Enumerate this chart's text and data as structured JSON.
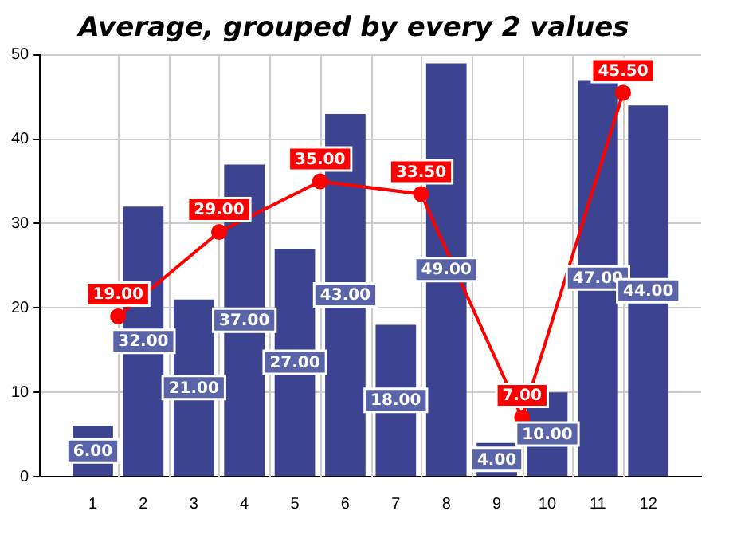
{
  "chart_data": {
    "type": "bar",
    "title": "Average, grouped by every 2 values",
    "x": [
      1,
      2,
      3,
      4,
      5,
      6,
      7,
      8,
      9,
      10,
      11,
      12
    ],
    "xlim": [
      0.5,
      12.5
    ],
    "xticks": [
      1,
      2,
      3,
      4,
      5,
      6,
      7,
      8,
      9,
      10,
      11,
      12
    ],
    "ylim": [
      0,
      50
    ],
    "yticks": [
      0,
      10,
      20,
      30,
      40,
      50
    ],
    "series": [
      {
        "color": "#3c4390",
        "values": [
          6,
          32,
          21,
          37,
          27,
          43,
          18,
          49,
          4,
          10,
          47,
          44
        ],
        "value_labels": [
          "6.00",
          "32.00",
          "21.00",
          "37.00",
          "27.00",
          "43.00",
          "18.00",
          "49.00",
          "4.00",
          "10.00",
          "47.00",
          "44.00"
        ]
      },
      {
        "type": "line",
        "color": "#ff0000",
        "x": [
          1.5,
          3.5,
          5.5,
          7.5,
          9.5,
          11.5
        ],
        "values": [
          19,
          29,
          35,
          33.5,
          7,
          45.5
        ],
        "value_labels": [
          "19.00",
          "29.00",
          "35.00",
          "33.50",
          "7.00",
          "45.50"
        ]
      }
    ],
    "marker": "circle",
    "grid": true
  }
}
